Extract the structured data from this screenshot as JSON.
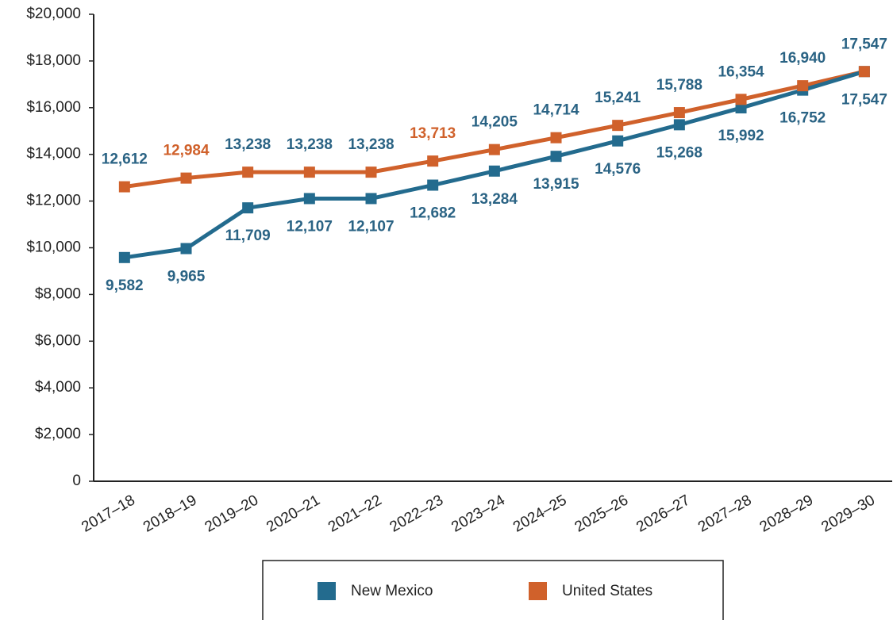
{
  "chart_data": {
    "type": "line",
    "categories": [
      "2017–18",
      "2018–19",
      "2019–20",
      "2020–21",
      "2021–22",
      "2022–23",
      "2023–24",
      "2024–25",
      "2025–26",
      "2026–27",
      "2027–28",
      "2028–29",
      "2029–30"
    ],
    "series": [
      {
        "name": "New Mexico",
        "color": "#236b8e",
        "values": [
          9582,
          9965,
          11709,
          12107,
          12107,
          12682,
          13284,
          13915,
          14576,
          15268,
          15992,
          16752,
          17547
        ],
        "value_labels": [
          "9,582",
          "9,965",
          "11,709",
          "12,107",
          "12,107",
          "12,682",
          "13,284",
          "13,915",
          "14,576",
          "15,268",
          "15,992",
          "16,752",
          "17,547"
        ],
        "value_label_colors": [
          "#2a6384",
          "#2a6384",
          "#2a6384",
          "#2a6384",
          "#2a6384",
          "#2a6384",
          "#2a6384",
          "#2a6384",
          "#2a6384",
          "#2a6384",
          "#2a6384",
          "#2a6384",
          "#2a6384"
        ]
      },
      {
        "name": "United States",
        "color": "#d0612b",
        "values": [
          12612,
          12984,
          13238,
          13238,
          13238,
          13713,
          14205,
          14714,
          15241,
          15788,
          16354,
          16940,
          17547
        ],
        "value_labels": [
          "12,612",
          "12,984",
          "13,238",
          "13,238",
          "13,238",
          "13,713",
          "14,205",
          "14,714",
          "15,241",
          "15,788",
          "16,354",
          "16,940",
          "17,547"
        ],
        "value_label_colors": [
          "#2a6384",
          "#d0612b",
          "#2a6384",
          "#2a6384",
          "#2a6384",
          "#d0612b",
          "#2a6384",
          "#2a6384",
          "#2a6384",
          "#2a6384",
          "#2a6384",
          "#2a6384",
          "#2a6384"
        ]
      }
    ],
    "ylim": [
      0,
      20000
    ],
    "yticks": [
      0,
      {
        "value": 2000,
        "label": "$2,000"
      },
      {
        "value": 4000,
        "label": "$4,000"
      },
      {
        "value": 6000,
        "label": "$6,000"
      },
      {
        "value": 8000,
        "label": "$8,000"
      },
      {
        "value": 10000,
        "label": "$10,000"
      },
      {
        "value": 12000,
        "label": "$12,000"
      },
      {
        "value": 14000,
        "label": "$14,000"
      },
      {
        "value": 16000,
        "label": "$16,000"
      },
      {
        "value": 18000,
        "label": "$18,000"
      },
      {
        "value": 20000,
        "label": "$20,000"
      }
    ],
    "grid": false,
    "legend": "bottom"
  }
}
